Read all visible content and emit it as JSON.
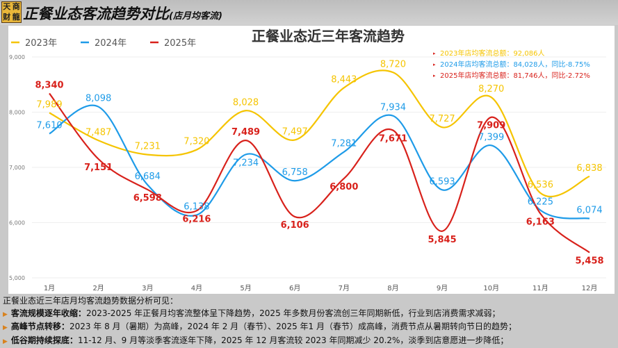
{
  "header": {
    "logo_text": "天商财龍",
    "title": "正餐业态客流趋势对比",
    "subtitle": "(店月均客流)"
  },
  "chart_data": {
    "type": "line",
    "title": "正餐业态近三年客流趋势",
    "categories": [
      "1月",
      "2月",
      "3月",
      "4月",
      "5月",
      "6月",
      "7月",
      "8月",
      "9月",
      "10月",
      "11月",
      "12月"
    ],
    "ylim": [
      5000,
      9000
    ],
    "yticks": [
      "5,000",
      "6,000",
      "7,000",
      "8,000",
      "9,000"
    ],
    "grid": true,
    "legend_position": "top-left",
    "series": [
      {
        "name": "2023年",
        "color": "#f5c400",
        "values": [
          7989,
          7487,
          7231,
          7320,
          8028,
          7497,
          8443,
          8720,
          7727,
          8270,
          6536,
          6838
        ]
      },
      {
        "name": "2024年",
        "color": "#1e9be8",
        "values": [
          7610,
          8098,
          6684,
          6138,
          7234,
          6758,
          7281,
          7934,
          6593,
          7399,
          6225,
          6074
        ]
      },
      {
        "name": "2025年",
        "color": "#d8211b",
        "values": [
          8340,
          7151,
          6598,
          6216,
          7489,
          6106,
          6800,
          7671,
          5845,
          7909,
          6163,
          5458
        ]
      }
    ],
    "annotations": [
      {
        "text": "2023年店均客流总额：92,086人",
        "color": "#f5c400"
      },
      {
        "text": "2024年店均客流总额：84,028人，同比-8.75%",
        "color": "#1e9be8"
      },
      {
        "text": "2025年店均客流总额：81,746人，同比-2.72%",
        "color": "#d8211b"
      }
    ]
  },
  "analysis": {
    "intro": "正餐业态近三年店月均客流趋势数据分析可见：",
    "points": [
      {
        "head": "客流规模逐年收缩：",
        "body": "2023-2025 年正餐月均客流整体呈下降趋势，2025 年多数月份客流创三年同期新低，行业到店消费需求减弱；"
      },
      {
        "head": "高峰节点转移：",
        "body": "2023 年 8 月（暑期）为高峰，2024 年 2 月（春节）、2025 年1 月（春节）成高峰，消费节点从暑期转向节日的趋势；"
      },
      {
        "head": "低谷期持续探底：",
        "body": "11-12 月、9 月等淡季客流逐年下降，2025 年 12 月客流较 2023 年同期减少 20.2%，淡季到店意愿进一步降低；"
      }
    ]
  }
}
